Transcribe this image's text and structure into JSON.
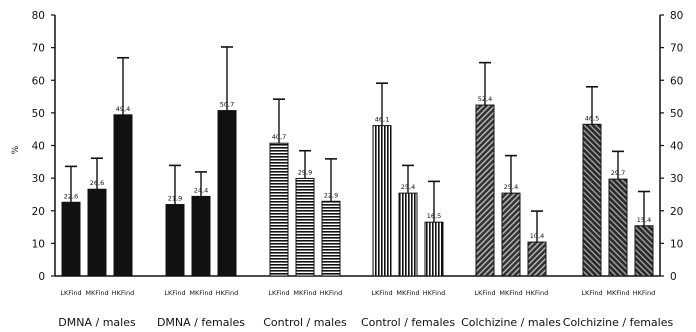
{
  "chart_data": {
    "type": "bar",
    "ylabel": "%",
    "ylim": [
      0,
      80
    ],
    "yticks": [
      0,
      10,
      20,
      30,
      40,
      50,
      60,
      70,
      80
    ],
    "grid": false,
    "legend": "none",
    "error_bars": true,
    "groups": [
      {
        "name": "DMNA / males",
        "categories": [
          "LKFind",
          "MKFind",
          "HKFind"
        ],
        "values": [
          22.6,
          26.6,
          49.4
        ],
        "errors": [
          11,
          9.5,
          17.5
        ],
        "value_labels": [
          "22,6",
          "26,6",
          "49,4"
        ],
        "fill": "solid"
      },
      {
        "name": "DMNA / females",
        "categories": [
          "LKFind",
          "MKFind",
          "HKFind"
        ],
        "values": [
          21.9,
          24.4,
          50.7
        ],
        "errors": [
          12,
          7.5,
          19.5
        ],
        "value_labels": [
          "21,9",
          "24,4",
          "50,7"
        ],
        "fill": "solid"
      },
      {
        "name": "Control / males",
        "categories": [
          "LKFind",
          "MKFind",
          "HKFind"
        ],
        "values": [
          40.7,
          29.9,
          22.9
        ],
        "errors": [
          13.5,
          8.5,
          13
        ],
        "value_labels": [
          "40,7",
          "29,9",
          "22,9"
        ],
        "fill": "horizontal-hatch"
      },
      {
        "name": "Control / females",
        "categories": [
          "LKFind",
          "MKFind",
          "HKFind"
        ],
        "values": [
          46.1,
          25.4,
          16.5
        ],
        "errors": [
          13,
          8.5,
          12.5
        ],
        "value_labels": [
          "46,1",
          "25,4",
          "16,5"
        ],
        "fill": "vertical-hatch"
      },
      {
        "name": "Colchizine / males",
        "categories": [
          "LKFind",
          "MKFind",
          "HKFind"
        ],
        "values": [
          52.4,
          25.4,
          10.4
        ],
        "errors": [
          13,
          11.5,
          9.5
        ],
        "value_labels": [
          "52,4",
          "25,4",
          "10,4"
        ],
        "fill": "diagonal-hatch"
      },
      {
        "name": "Colchizine / females",
        "categories": [
          "LKFind",
          "MKFind",
          "HKFind"
        ],
        "values": [
          46.5,
          29.7,
          15.4
        ],
        "errors": [
          11.5,
          8.5,
          10.5
        ],
        "value_labels": [
          "46,5",
          "29,7",
          "15,4"
        ],
        "fill": "diagonal-hatch-dense"
      }
    ]
  }
}
